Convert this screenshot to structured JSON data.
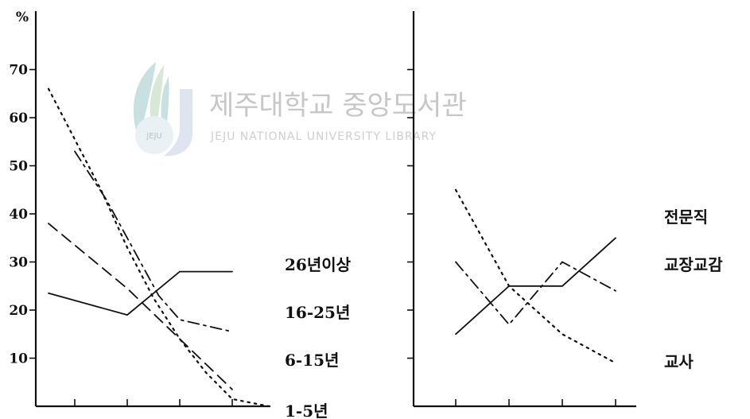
{
  "watermark": {
    "title": "제주대학교 중앙도서관",
    "subtitle": "JEJU NATIONAL UNIVERSITY LIBRARY",
    "logo_text": "JEJU"
  },
  "colors": {
    "ink": "#111111",
    "watermark": "#c7c7c7",
    "watermark_logo": "#9ec7c9"
  },
  "chart_data": [
    {
      "type": "line",
      "ylabel": "%",
      "ylim": [
        0,
        80
      ],
      "yticks": [
        10,
        20,
        30,
        40,
        50,
        60,
        70
      ],
      "yticklabels": [
        "10",
        "20",
        "30",
        "40",
        "50",
        "60",
        "70"
      ],
      "x": [
        1,
        2,
        3,
        4
      ],
      "xlim": [
        0.5,
        4.5
      ],
      "grid": false,
      "series": [
        {
          "name": "26년이상",
          "style": "solid",
          "x": [
            0.5,
            2,
            3,
            4
          ],
          "values": [
            23.5,
            19,
            28,
            28
          ]
        },
        {
          "name": "16-25년",
          "style": "dashdot",
          "x": [
            1,
            1.6,
            2.6,
            3,
            4
          ],
          "values": [
            53,
            43,
            23,
            18,
            15.5
          ]
        },
        {
          "name": "6-15년",
          "style": "dashed",
          "x": [
            0.5,
            2,
            4
          ],
          "values": [
            38,
            24.5,
            3.5
          ]
        },
        {
          "name": "1-5년",
          "style": "dotted",
          "x": [
            0.5,
            1.5,
            2,
            2.5,
            3,
            3.5,
            4,
            4.7
          ],
          "values": [
            66,
            45,
            33,
            22.5,
            14,
            7,
            1.5,
            0
          ]
        }
      ]
    },
    {
      "type": "line",
      "ylim": [
        0,
        80
      ],
      "yticks": [
        10,
        20,
        30,
        40,
        50,
        60,
        70
      ],
      "x": [
        1,
        2,
        3,
        4
      ],
      "xlim": [
        0.5,
        4.5
      ],
      "grid": false,
      "series": [
        {
          "name": "전문직",
          "style": "dotted",
          "x": [
            1,
            2,
            3,
            4
          ],
          "values": [
            45,
            25,
            15,
            9
          ]
        },
        {
          "name": "교장교감",
          "style": "dashdot",
          "x": [
            1,
            2,
            3,
            4
          ],
          "values": [
            30,
            17,
            30,
            24
          ]
        },
        {
          "name": "교사",
          "style": "solid",
          "x": [
            1,
            2,
            3,
            4
          ],
          "values": [
            15,
            25,
            25,
            35
          ]
        }
      ]
    }
  ]
}
